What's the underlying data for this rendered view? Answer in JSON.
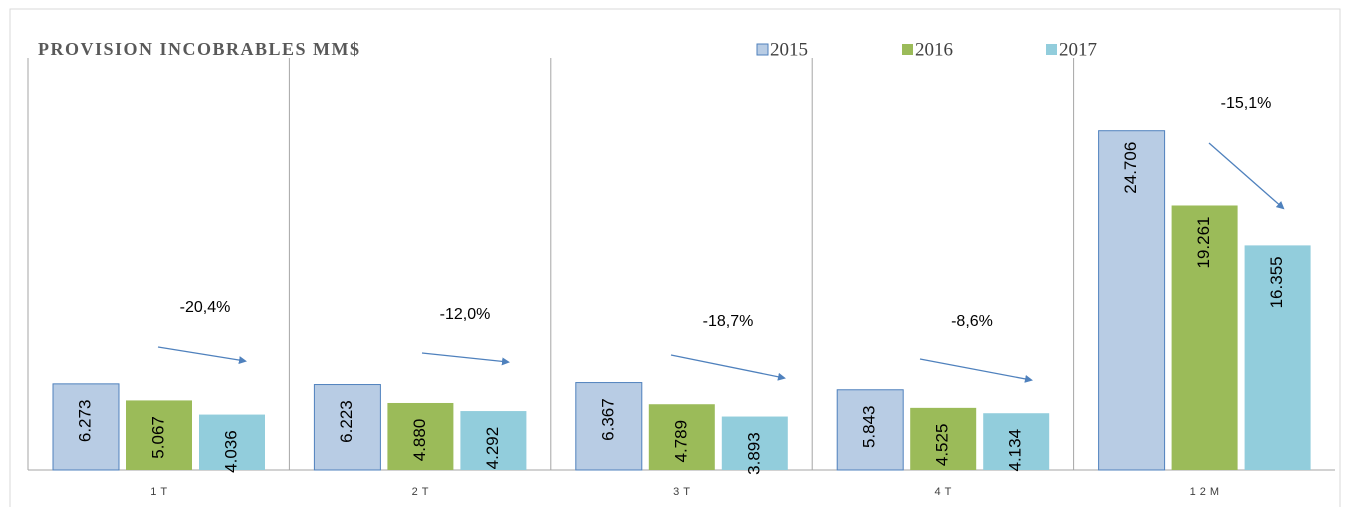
{
  "chart_data": {
    "type": "bar",
    "title": "PROVISION INCOBRABLES MM$",
    "categories": [
      "1T",
      "2T",
      "3T",
      "4T",
      "12M"
    ],
    "series": [
      {
        "name": "2015",
        "color": "#b8cce4",
        "values": [
          6273,
          6223,
          6367,
          5843,
          24706
        ],
        "value_labels": [
          "6.273",
          "6.223",
          "6.367",
          "5.843",
          "24.706"
        ]
      },
      {
        "name": "2016",
        "color": "#9bbb59",
        "values": [
          5067,
          4880,
          4789,
          4525,
          19261
        ],
        "value_labels": [
          "5.067",
          "4.880",
          "4.789",
          "4.525",
          "19.261"
        ]
      },
      {
        "name": "2017",
        "color": "#92cddc",
        "values": [
          4036,
          4292,
          3893,
          4134,
          16355
        ],
        "value_labels": [
          "4.036",
          "4.292",
          "3.893",
          "4.134",
          "16.355"
        ]
      }
    ],
    "annotations": [
      "-20,4%",
      "-12,0%",
      "-18,7%",
      "-8,6%",
      "-15,1%"
    ],
    "ylim": [
      0,
      30000
    ]
  }
}
